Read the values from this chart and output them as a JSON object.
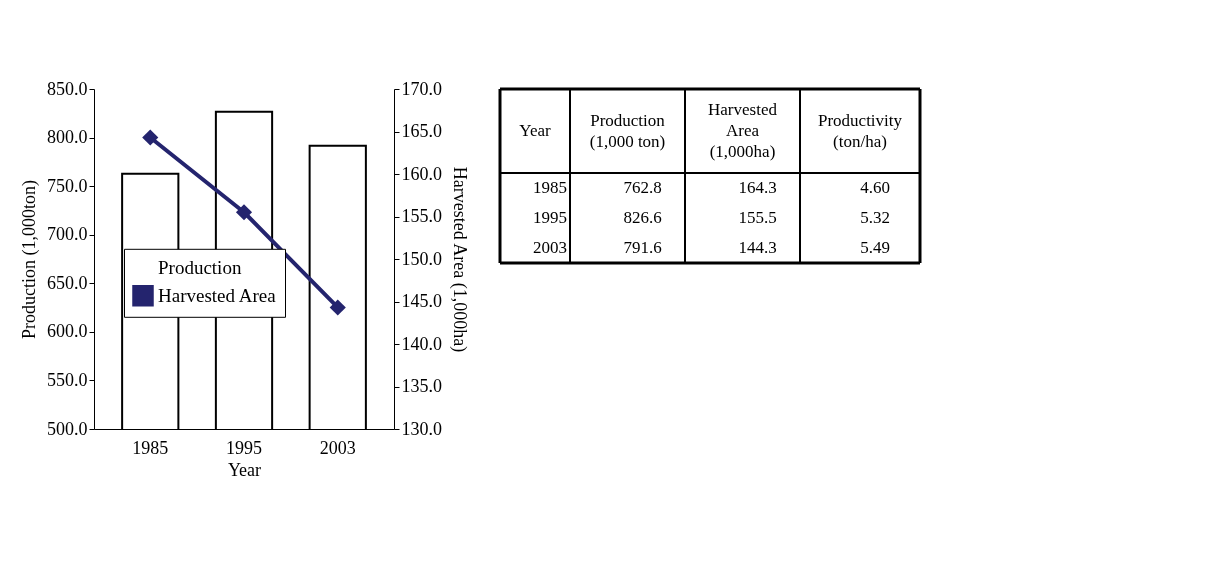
{
  "chart_data": [
    {
      "type": "bar",
      "xlabel": "Year",
      "ylabel": "Production (1,000ton)",
      "y2label": "Harvested Area (1,000ha)",
      "categories": [
        "1985",
        "1995",
        "2003"
      ],
      "series": [
        {
          "name": "Production",
          "type": "bar",
          "color": "#ffffff",
          "values": [
            762.8,
            826.6,
            791.6
          ]
        },
        {
          "name": "Harvested Area",
          "type": "line",
          "axis": "y2",
          "color": "#24246e",
          "values": [
            164.3,
            155.5,
            144.3
          ]
        }
      ],
      "ylim": [
        500,
        850
      ],
      "yticks": [
        {
          "value": 500,
          "label": "500.0"
        },
        {
          "value": 550,
          "label": "550.0"
        },
        {
          "value": 600,
          "label": "600.0"
        },
        {
          "value": 650,
          "label": "650.0"
        },
        {
          "value": 700,
          "label": "700.0"
        },
        {
          "value": 750,
          "label": "750.0"
        },
        {
          "value": 800,
          "label": "800.0"
        },
        {
          "value": 850,
          "label": "850.0"
        }
      ],
      "y2lim": [
        130,
        170
      ],
      "y2ticks": [
        {
          "value": 130,
          "label": "130.0"
        },
        {
          "value": 135,
          "label": "135.0"
        },
        {
          "value": 140,
          "label": "140.0"
        },
        {
          "value": 145,
          "label": "145.0"
        },
        {
          "value": 150,
          "label": "150.0"
        },
        {
          "value": 155,
          "label": "155.0"
        },
        {
          "value": 160,
          "label": "160.0"
        },
        {
          "value": 165,
          "label": "165.0"
        },
        {
          "value": 170,
          "label": "170.0"
        }
      ],
      "grid": false,
      "legend": "left",
      "marker": "diamond",
      "line_style": "solid"
    },
    {
      "type": "other",
      "annotations": [
        "Year",
        "Production\n(1,000 ton)",
        "Harvested\nArea\n(1,000ha)",
        "Productivity\n(ton/ha)",
        "1985",
        "762.8",
        "164.3",
        "4.60",
        "1995",
        "826.6",
        "155.5",
        "5.32",
        "2003",
        "791.6",
        "144.3",
        "5.49"
      ]
    }
  ]
}
